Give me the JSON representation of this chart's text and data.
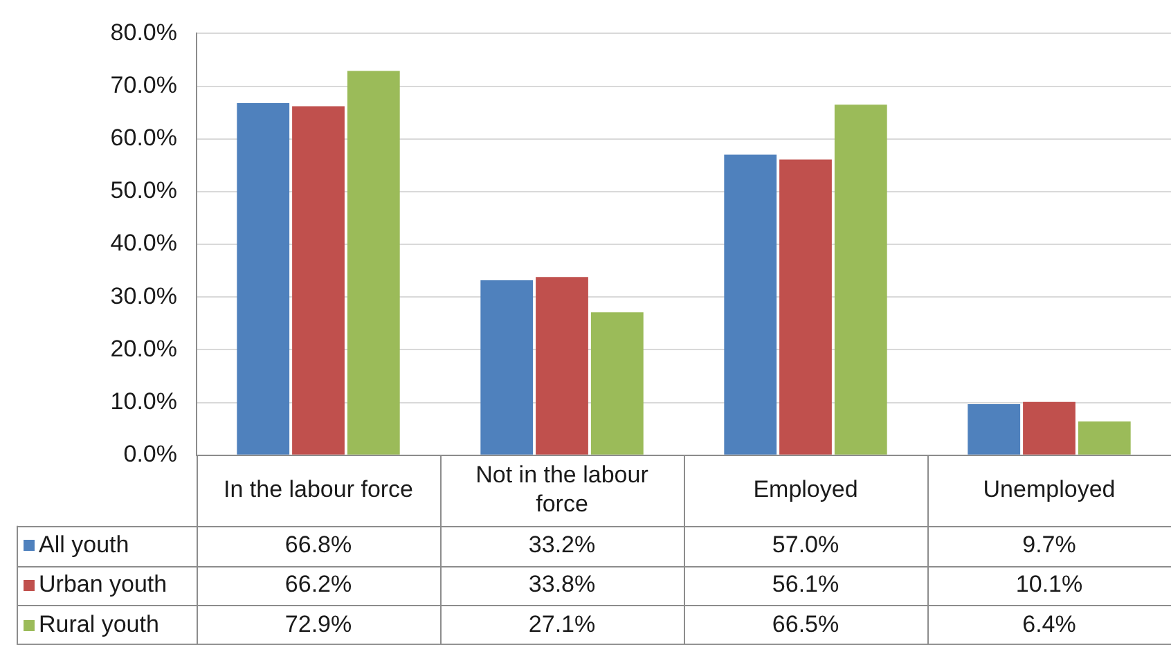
{
  "chart_data": {
    "type": "bar",
    "categories": [
      "In the labour force",
      "Not in the labour force",
      "Employed",
      "Unemployed"
    ],
    "series": [
      {
        "name": "All youth",
        "color": "#4f81bd",
        "values": [
          66.8,
          33.2,
          57.0,
          9.7
        ],
        "value_labels": [
          "66.8%",
          "33.2%",
          "57.0%",
          "9.7%"
        ]
      },
      {
        "name": "Urban youth",
        "color": "#c0504d",
        "values": [
          66.2,
          33.8,
          56.1,
          10.1
        ],
        "value_labels": [
          "66.2%",
          "33.8%",
          "56.1%",
          "10.1%"
        ]
      },
      {
        "name": "Rural youth",
        "color": "#9bbb59",
        "values": [
          72.9,
          27.1,
          66.5,
          6.4
        ],
        "value_labels": [
          "72.9%",
          "27.1%",
          "66.5%",
          "6.4%"
        ]
      }
    ],
    "ylim": [
      0,
      80
    ],
    "yticks": [
      {
        "value": 0,
        "label": "0.0%"
      },
      {
        "value": 10,
        "label": "10.0%"
      },
      {
        "value": 20,
        "label": "20.0%"
      },
      {
        "value": 30,
        "label": "30.0%"
      },
      {
        "value": 40,
        "label": "40.0%"
      },
      {
        "value": 50,
        "label": "50.0%"
      },
      {
        "value": 60,
        "label": "60.0%"
      },
      {
        "value": 70,
        "label": "70.0%"
      },
      {
        "value": 80,
        "label": "80.0%"
      }
    ],
    "grid": "y",
    "legend": "bottom"
  }
}
